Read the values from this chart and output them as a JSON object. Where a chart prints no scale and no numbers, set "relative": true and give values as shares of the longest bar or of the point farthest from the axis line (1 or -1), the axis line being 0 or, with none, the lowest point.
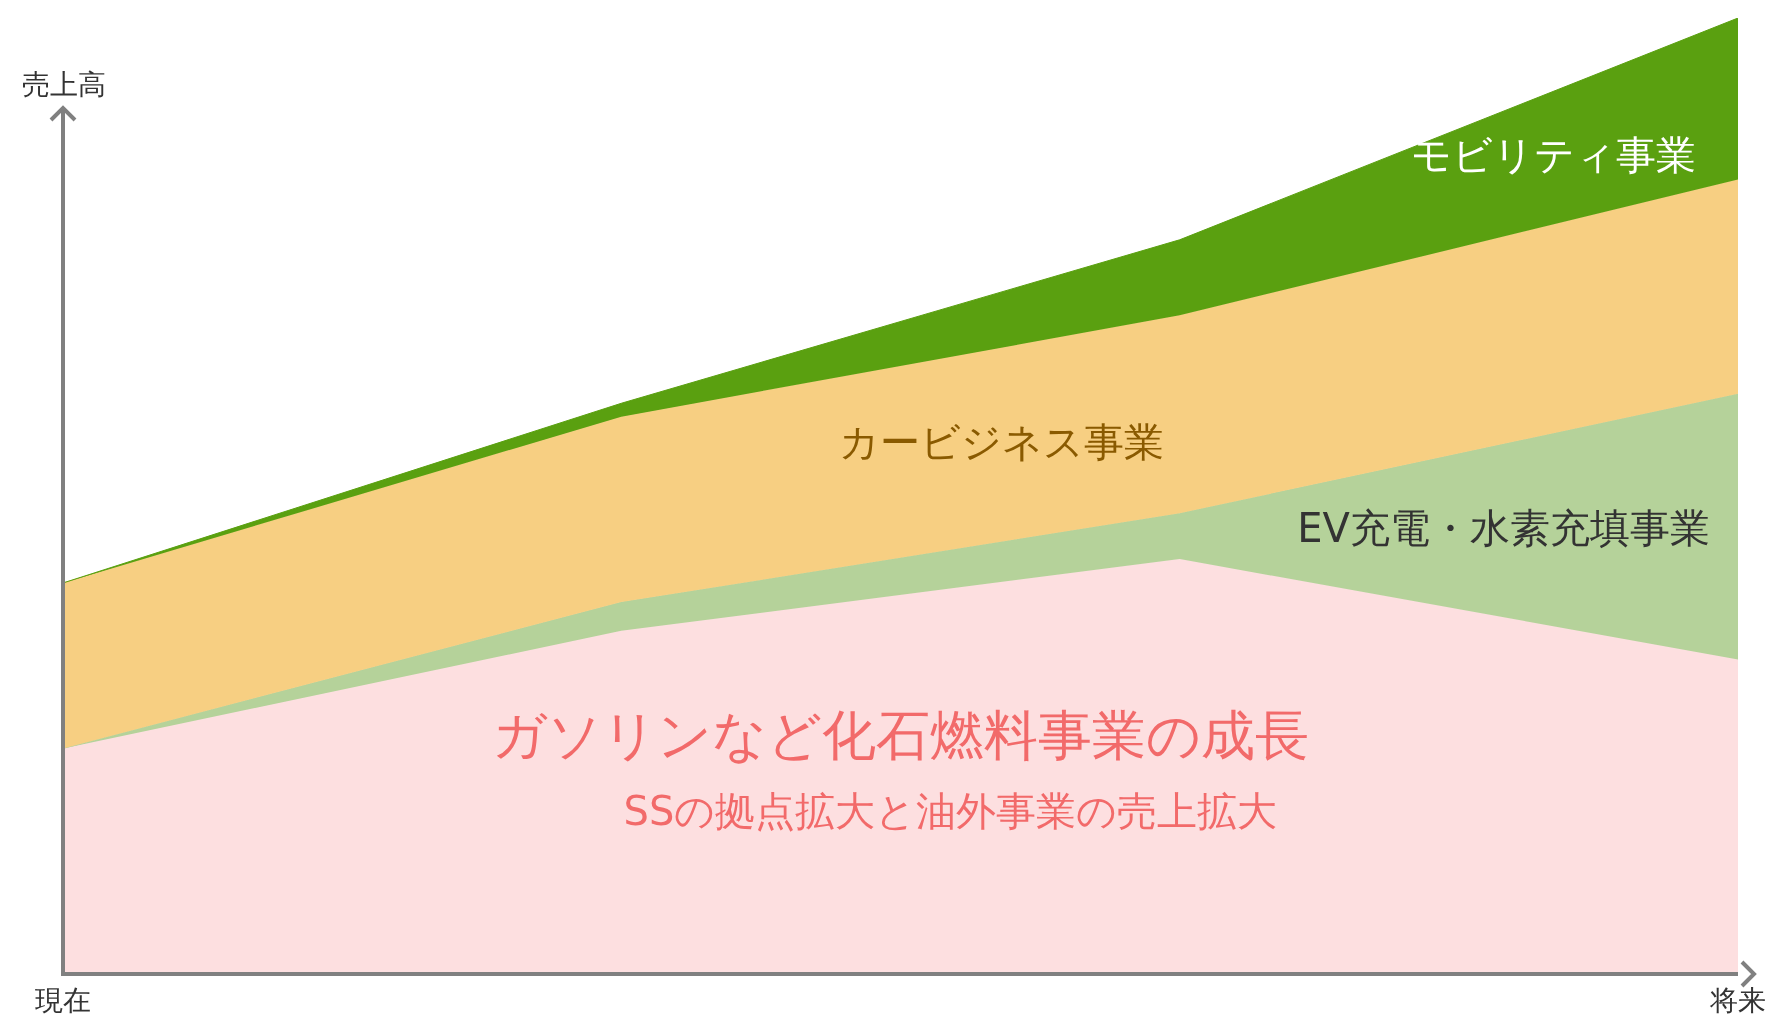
{
  "chart_data": {
    "type": "area",
    "stacked": true,
    "relative": true,
    "ylabel": "売上高",
    "categories": [
      "現在",
      null,
      null,
      "将来"
    ],
    "tick_labels": "x",
    "series": [
      {
        "name": "ガソリンなど化石燃料事業の成長",
        "color": "#fddfe0",
        "values": [
          0.236,
          0.359,
          0.434,
          0.329
        ]
      },
      {
        "name": "EV充電・水素充填事業",
        "color": "#b5d29a",
        "values": [
          0,
          0.03,
          0.048,
          0.278
        ]
      },
      {
        "name": "カービジネス事業",
        "color": "#f7cf82",
        "values": [
          0.173,
          0.194,
          0.207,
          0.224
        ]
      },
      {
        "name": "モビリティ事業",
        "color": "#5aa010",
        "values": [
          0,
          0.014,
          0.079,
          0.169
        ]
      }
    ],
    "annotations": [
      "SSの拠点拡大と油外事業の売上拡大"
    ]
  }
}
